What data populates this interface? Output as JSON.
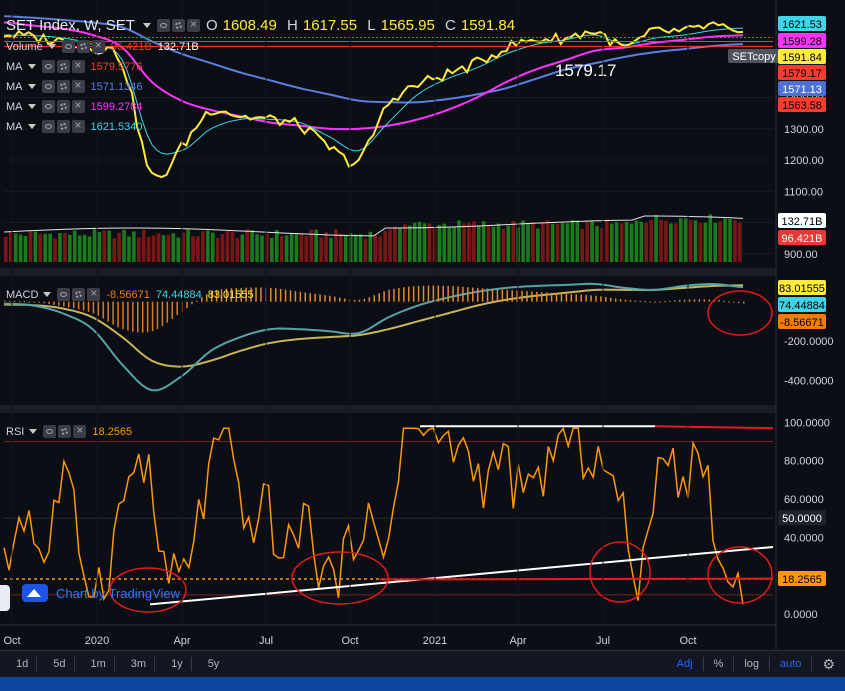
{
  "header": {
    "title": "SET Index, W, SET",
    "ohlc": {
      "O": "1608.49",
      "H": "1617.55",
      "L": "1565.95",
      "C": "1591.84"
    }
  },
  "legends": {
    "volume": {
      "name": "Volume",
      "v1": "96.421B",
      "v2": "132.71B"
    },
    "ma": [
      {
        "name": "MA",
        "value": "1579.5776",
        "color": "#ff3b30"
      },
      {
        "name": "MA",
        "value": "1571.1346",
        "color": "#5b7fe0"
      },
      {
        "name": "MA",
        "value": "1599.2784",
        "color": "#ff33ff"
      },
      {
        "name": "MA",
        "value": "1621.5340",
        "color": "#3dd6e8"
      }
    ],
    "macd": {
      "name": "MACD",
      "hist": "-8.56671",
      "macd": "74.44884",
      "signal": "83.01555"
    },
    "rsi": {
      "name": "RSI",
      "value": "18.2565"
    }
  },
  "annotations": {
    "setcopy": "SETcopy",
    "price_label": "1579.17"
  },
  "watermark": "Chart by TradingView",
  "price_axis": {
    "ticks": [
      "1400.00",
      "1300.00",
      "1200.00",
      "1100.00",
      "1000.00",
      "900.00"
    ],
    "tags": [
      {
        "text": "1621.53",
        "bg": "#3dd6e8",
        "fg": "#000000"
      },
      {
        "text": "1599.28",
        "bg": "#ff33ff",
        "fg": "#000000"
      },
      {
        "text": "1591.84",
        "bg": "#ffeb3b",
        "fg": "#000000"
      },
      {
        "text": "1579.17",
        "bg": "#ff3b30",
        "fg": "#000000"
      },
      {
        "text": "1571.13",
        "bg": "#4d6fd8",
        "fg": "#ffffff"
      },
      {
        "text": "1563.58",
        "bg": "#ff3b30",
        "fg": "#000000"
      },
      {
        "text": "132.71B",
        "bg": "#ffffff",
        "fg": "#000000"
      },
      {
        "text": "96.421B",
        "bg": "#e53935",
        "fg": "#ffffff"
      }
    ]
  },
  "macd_axis": {
    "ticks": [
      "-200.0000",
      "-400.0000"
    ],
    "tags": [
      {
        "text": "83.01555",
        "bg": "#ffeb3b",
        "fg": "#000000"
      },
      {
        "text": "74.44884",
        "bg": "#3dd6e8",
        "fg": "#000000"
      },
      {
        "text": "-8.56671",
        "bg": "#f57c00",
        "fg": "#000000"
      }
    ]
  },
  "rsi_axis": {
    "ticks": [
      "100.0000",
      "80.0000",
      "60.0000",
      "40.0000",
      "0.0000"
    ],
    "tags": [
      {
        "text": "50.0000",
        "bg": "#1e222d",
        "fg": "#ffffff"
      },
      {
        "text": "18.2565",
        "bg": "#ff9800",
        "fg": "#000000"
      }
    ]
  },
  "time_axis": {
    "labels": [
      "Oct",
      "2020",
      "Apr",
      "Jul",
      "Oct",
      "2021",
      "Apr",
      "Jul",
      "Oct"
    ]
  },
  "bottom_bar": {
    "timeframes": [
      "1d",
      "5d",
      "1m",
      "3m",
      "1y",
      "5y"
    ],
    "options": [
      "Adj",
      "%",
      "log",
      "auto"
    ]
  },
  "chart_data": {
    "type": "line",
    "x": [
      "2019-10",
      "2019-11",
      "2019-12",
      "2020-01",
      "2020-02",
      "2020-03",
      "2020-04",
      "2020-05",
      "2020-06",
      "2020-07",
      "2020-08",
      "2020-09",
      "2020-10",
      "2020-11",
      "2020-12",
      "2021-01",
      "2021-02",
      "2021-03",
      "2021-04",
      "2021-05",
      "2021-06",
      "2021-07",
      "2021-08",
      "2021-09",
      "2021-10",
      "2021-11"
    ],
    "series": [
      {
        "name": "SET Index",
        "color": "#ffeb3b",
        "values": [
          1602,
          1592,
          1580,
          1560,
          1510,
          1150,
          1240,
          1360,
          1340,
          1330,
          1310,
          1240,
          1200,
          1380,
          1440,
          1475,
          1510,
          1560,
          1585,
          1590,
          1610,
          1560,
          1610,
          1610,
          1630,
          1592
        ]
      },
      {
        "name": "MA 1621.5340",
        "color": "#3dd6e8",
        "values": [
          1600,
          1598,
          1590,
          1570,
          1520,
          1250,
          1230,
          1300,
          1330,
          1330,
          1320,
          1275,
          1230,
          1320,
          1410,
          1460,
          1495,
          1540,
          1570,
          1585,
          1600,
          1570,
          1590,
          1600,
          1615,
          1622
        ]
      },
      {
        "name": "MA 1599.2784",
        "color": "#ff33ff",
        "values": [
          1640,
          1630,
          1620,
          1600,
          1560,
          1450,
          1390,
          1360,
          1340,
          1320,
          1310,
          1300,
          1300,
          1310,
          1330,
          1360,
          1400,
          1450,
          1490,
          1520,
          1550,
          1560,
          1575,
          1585,
          1595,
          1599
        ]
      },
      {
        "name": "MA 1571.1346",
        "color": "#5b7fe0",
        "values": [
          1660,
          1655,
          1648,
          1640,
          1625,
          1580,
          1540,
          1510,
          1480,
          1455,
          1430,
          1410,
          1390,
          1385,
          1385,
          1395,
          1410,
          1430,
          1460,
          1490,
          1510,
          1530,
          1545,
          1555,
          1565,
          1571
        ]
      }
    ],
    "volume": {
      "last": "96.421B",
      "average": "132.71B"
    },
    "macd": {
      "macd": 74.44884,
      "signal": 83.01555,
      "histogram": -8.56671,
      "ylim": [
        -500,
        100
      ]
    },
    "rsi": {
      "last": 18.2565,
      "ylim": [
        0,
        100
      ]
    },
    "ylim": [
      880,
      1680
    ]
  }
}
